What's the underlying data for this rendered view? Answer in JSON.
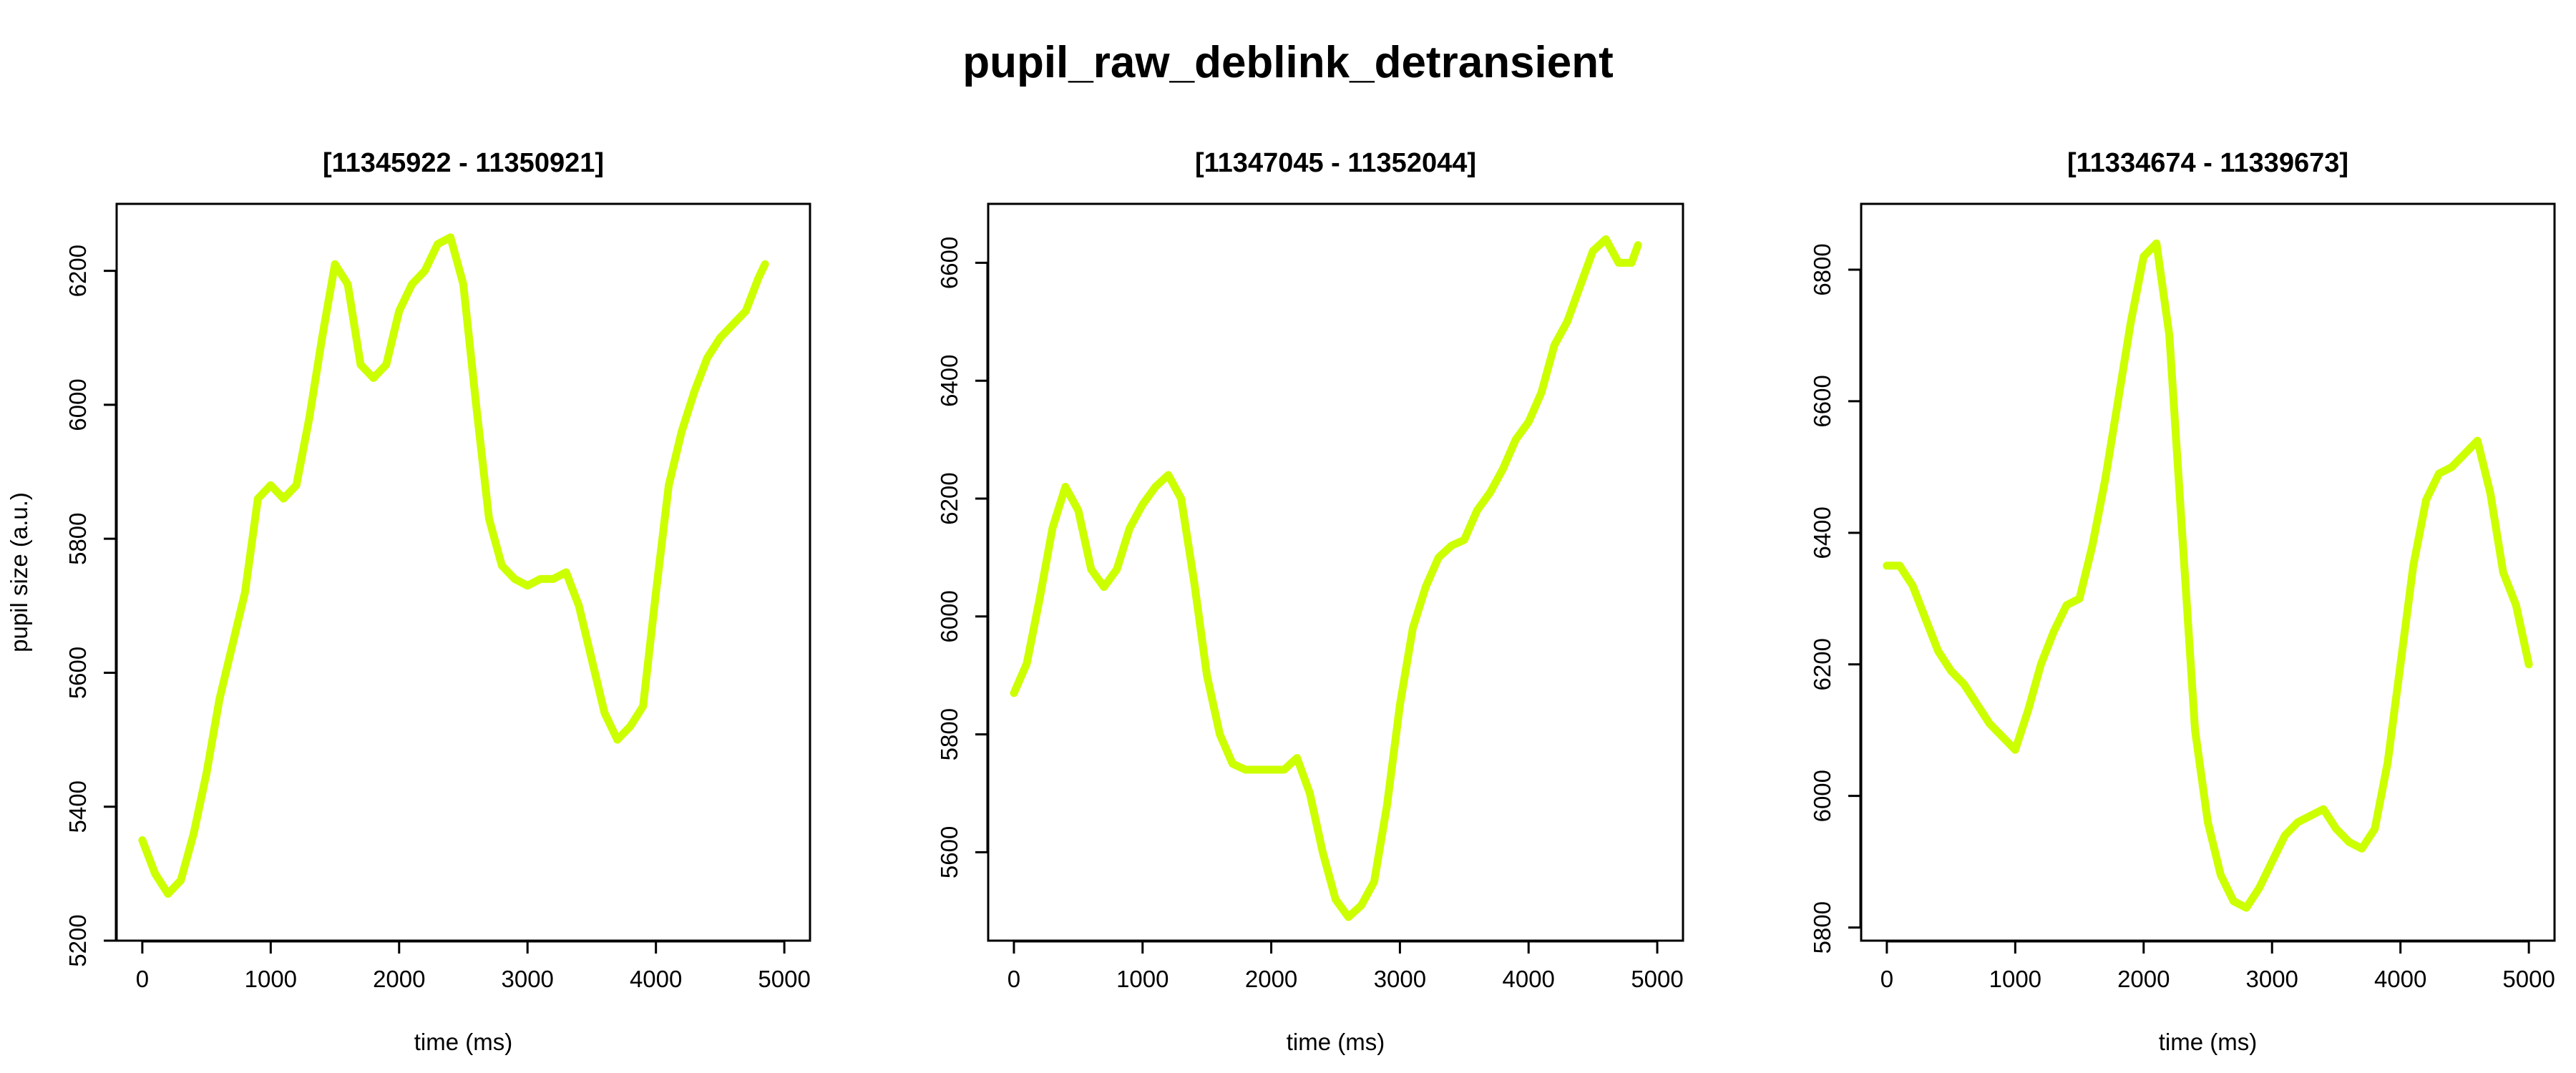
{
  "figure": {
    "title": "pupil_raw_deblink_detransient"
  },
  "chart_data": [
    {
      "type": "line",
      "title": "[11345922 - 11350921]",
      "xlabel": "time (ms)",
      "ylabel": "pupil size (a.u.)",
      "xlim": [
        -200,
        5200
      ],
      "ylim": [
        5200,
        6300
      ],
      "xticks": [
        0,
        1000,
        2000,
        3000,
        4000,
        5000
      ],
      "yticks": [
        5200,
        5400,
        5600,
        5800,
        6000,
        6200
      ],
      "grid": false,
      "series": [
        {
          "color": "#ccff00",
          "x": [
            0,
            100,
            200,
            300,
            400,
            500,
            600,
            700,
            800,
            900,
            1000,
            1100,
            1200,
            1300,
            1400,
            1500,
            1600,
            1700,
            1800,
            1900,
            2000,
            2100,
            2200,
            2300,
            2400,
            2500,
            2600,
            2700,
            2800,
            2900,
            3000,
            3100,
            3200,
            3300,
            3400,
            3500,
            3600,
            3700,
            3800,
            3900,
            4000,
            4100,
            4200,
            4300,
            4400,
            4500,
            4600,
            4700,
            4800,
            4850
          ],
          "y": [
            5350,
            5300,
            5270,
            5290,
            5360,
            5450,
            5560,
            5640,
            5720,
            5860,
            5880,
            5860,
            5880,
            5980,
            6100,
            6210,
            6180,
            6060,
            6040,
            6060,
            6140,
            6180,
            6200,
            6240,
            6250,
            6180,
            6000,
            5830,
            5760,
            5740,
            5730,
            5740,
            5740,
            5750,
            5700,
            5620,
            5540,
            5500,
            5520,
            5550,
            5720,
            5880,
            5960,
            6020,
            6070,
            6100,
            6120,
            6140,
            6190,
            6210
          ]
        }
      ]
    },
    {
      "type": "line",
      "title": "[11347045 - 11352044]",
      "xlabel": "time (ms)",
      "ylabel": "",
      "xlim": [
        -200,
        5200
      ],
      "ylim": [
        5450,
        6700
      ],
      "xticks": [
        0,
        1000,
        2000,
        3000,
        4000,
        5000
      ],
      "yticks": [
        5600,
        5800,
        6000,
        6200,
        6400,
        6600
      ],
      "grid": false,
      "series": [
        {
          "color": "#ccff00",
          "x": [
            0,
            100,
            200,
            300,
            400,
            500,
            600,
            700,
            800,
            900,
            1000,
            1100,
            1200,
            1300,
            1400,
            1500,
            1600,
            1700,
            1800,
            1900,
            2000,
            2100,
            2200,
            2300,
            2400,
            2500,
            2600,
            2700,
            2800,
            2900,
            3000,
            3100,
            3200,
            3300,
            3400,
            3500,
            3600,
            3700,
            3800,
            3900,
            4000,
            4100,
            4200,
            4300,
            4400,
            4500,
            4600,
            4700,
            4800,
            4850
          ],
          "y": [
            5870,
            5920,
            6030,
            6150,
            6220,
            6180,
            6080,
            6050,
            6080,
            6150,
            6190,
            6220,
            6240,
            6200,
            6060,
            5900,
            5800,
            5750,
            5740,
            5740,
            5740,
            5740,
            5760,
            5700,
            5600,
            5520,
            5490,
            5510,
            5550,
            5680,
            5850,
            5980,
            6050,
            6100,
            6120,
            6130,
            6180,
            6210,
            6250,
            6300,
            6330,
            6380,
            6460,
            6500,
            6560,
            6620,
            6640,
            6600,
            6600,
            6630
          ]
        }
      ]
    },
    {
      "type": "line",
      "title": "[11334674 - 11339673]",
      "xlabel": "time (ms)",
      "ylabel": "",
      "xlim": [
        -200,
        5200
      ],
      "ylim": [
        5780,
        6900
      ],
      "xticks": [
        0,
        1000,
        2000,
        3000,
        4000,
        5000
      ],
      "yticks": [
        5800,
        6000,
        6200,
        6400,
        6600,
        6800
      ],
      "grid": false,
      "series": [
        {
          "color": "#ccff00",
          "x": [
            0,
            100,
            200,
            300,
            400,
            500,
            600,
            700,
            800,
            900,
            1000,
            1100,
            1200,
            1300,
            1400,
            1500,
            1600,
            1700,
            1800,
            1900,
            2000,
            2100,
            2200,
            2300,
            2400,
            2500,
            2600,
            2700,
            2800,
            2900,
            3000,
            3100,
            3200,
            3300,
            3400,
            3500,
            3600,
            3700,
            3800,
            3900,
            4000,
            4100,
            4200,
            4300,
            4400,
            4500,
            4600,
            4700,
            4800,
            4900,
            5000
          ],
          "y": [
            6350,
            6350,
            6320,
            6270,
            6220,
            6190,
            6170,
            6140,
            6110,
            6090,
            6070,
            6130,
            6200,
            6250,
            6290,
            6300,
            6380,
            6480,
            6600,
            6720,
            6820,
            6840,
            6700,
            6400,
            6100,
            5960,
            5880,
            5840,
            5830,
            5860,
            5900,
            5940,
            5960,
            5970,
            5980,
            5950,
            5930,
            5920,
            5950,
            6050,
            6200,
            6350,
            6450,
            6490,
            6500,
            6520,
            6540,
            6460,
            6340,
            6290,
            6200
          ]
        }
      ]
    }
  ]
}
